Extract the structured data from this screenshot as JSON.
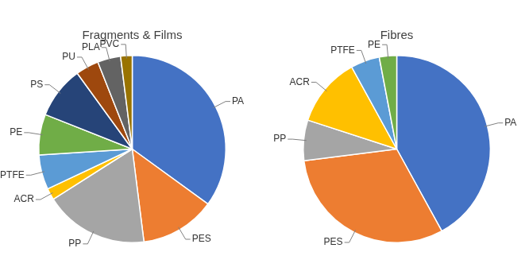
{
  "chart_data": [
    {
      "type": "pie",
      "title": "Fragments & Films",
      "categories": [
        "PA",
        "PES",
        "PP",
        "ACR",
        "PTFE",
        "PE",
        "PS",
        "PU",
        "PLA",
        "PVC"
      ],
      "values": [
        35,
        13,
        18,
        2,
        6,
        7,
        9,
        4,
        4,
        2
      ],
      "colors": [
        "#4472c4",
        "#ed7d31",
        "#a5a5a5",
        "#ffc000",
        "#5b9bd5",
        "#70ad47",
        "#264478",
        "#9e480e",
        "#636363",
        "#997300"
      ]
    },
    {
      "type": "pie",
      "title": "Fibres",
      "categories": [
        "PA",
        "PES",
        "PP",
        "ACR",
        "PTFE",
        "PE"
      ],
      "values": [
        42,
        31,
        7,
        12,
        5,
        3
      ],
      "colors": [
        "#4472c4",
        "#ed7d31",
        "#a5a5a5",
        "#ffc000",
        "#5b9bd5",
        "#70ad47"
      ]
    }
  ]
}
